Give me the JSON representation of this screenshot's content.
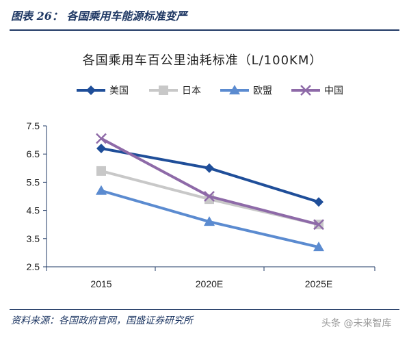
{
  "header": {
    "figure_title": "图表 26：  各国乘用车能源标准变严"
  },
  "footer": {
    "source": "资料来源：各国政府官网，国盛证券研究所",
    "watermark": "头条 @未来智库"
  },
  "colors": {
    "美国": "#1f4e99",
    "日本": "#c8c8c8",
    "欧盟": "#5b8bd0",
    "中国": "#8e6aa8",
    "frame": "#1f3864"
  },
  "chart_data": {
    "type": "line",
    "title": "各国乘用车百公里油耗标准（L/100KM）",
    "categories": [
      "2015",
      "2020E",
      "2025E"
    ],
    "ylim": [
      2.5,
      7.5
    ],
    "yticks": [
      "7.5",
      "6.5",
      "5.5",
      "4.5",
      "3.5",
      "2.5"
    ],
    "grid": false,
    "legend_position": "top",
    "series": [
      {
        "name": "美国",
        "marker": "diamond",
        "values": [
          6.7,
          6.0,
          4.8
        ]
      },
      {
        "name": "日本",
        "marker": "square",
        "values": [
          5.9,
          4.9,
          4.0
        ]
      },
      {
        "name": "欧盟",
        "marker": "triangle",
        "values": [
          5.2,
          4.1,
          3.2
        ]
      },
      {
        "name": "中国",
        "marker": "x",
        "values": [
          7.05,
          5.0,
          4.0
        ]
      }
    ]
  }
}
